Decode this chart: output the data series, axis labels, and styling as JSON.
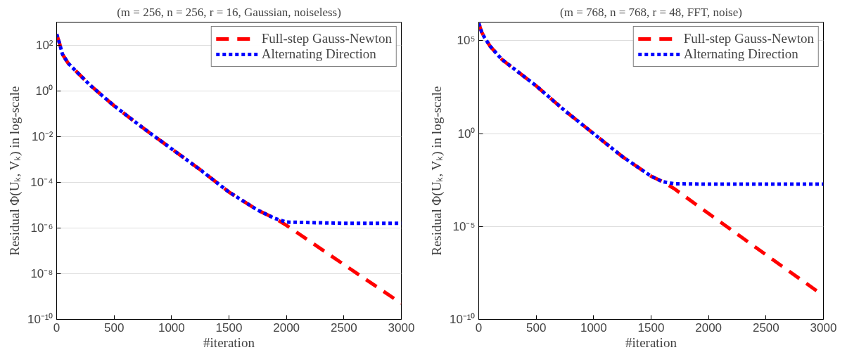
{
  "chart_data": [
    {
      "type": "line",
      "title": "(m = 256, n = 256, r = 16, Gaussian, noiseless)",
      "xlabel": "#iteration",
      "ylabel": "Residual Φ(Uₖ, Vₖ) in log-scale",
      "log": "y",
      "grid": "y",
      "legend": "top right",
      "x": [
        0,
        25,
        50,
        100,
        200,
        300,
        500,
        750,
        1000,
        1250,
        1500,
        1750,
        1900,
        2000,
        2500,
        3000
      ],
      "xlim": [
        0,
        3000
      ],
      "xticks": [
        0,
        500,
        1000,
        1500,
        2000,
        2500,
        3000
      ],
      "ylim": [
        1e-10,
        1000
      ],
      "yticks": [
        {
          "value": 1e-10,
          "label": "10⁻¹⁰"
        },
        {
          "value": 1e-08,
          "label": "10⁻⁸"
        },
        {
          "value": 1e-06,
          "label": "10⁻⁶"
        },
        {
          "value": 0.0001,
          "label": "10⁻⁴"
        },
        {
          "value": 0.01,
          "label": "10⁻²"
        },
        {
          "value": 1,
          "label": "10⁰"
        },
        {
          "value": 100,
          "label": "10²"
        }
      ],
      "series": [
        {
          "name": "Full-step Gauss-Newton",
          "color": "#ff0000",
          "line_style": "dashed",
          "values": [
            300,
            120,
            40,
            16,
            5,
            1.6,
            0.22,
            0.024,
            0.0029,
            0.00035,
            3.7e-05,
            6e-06,
            2.6e-06,
            1.3e-06,
            2.5e-08,
            5e-10
          ]
        },
        {
          "name": "Alternating Direction",
          "color": "#0000ff",
          "line_style": "dotted",
          "values": [
            300,
            120,
            40,
            16,
            5,
            1.6,
            0.22,
            0.024,
            0.0029,
            0.00035,
            3.7e-05,
            6e-06,
            2.6e-06,
            1.8e-06,
            1.6e-06,
            1.6e-06
          ]
        }
      ]
    },
    {
      "type": "line",
      "title": "(m = 768, n = 768, r = 48, FFT, noise)",
      "xlabel": "#iteration",
      "ylabel": "Residual Φ(Uₖ, Vₖ) in log-scale",
      "log": "y",
      "grid": "y",
      "legend": "top right",
      "x": [
        0,
        25,
        50,
        100,
        200,
        500,
        750,
        1000,
        1250,
        1500,
        1600,
        1700,
        2000,
        2500,
        3000
      ],
      "xlim": [
        0,
        3000
      ],
      "xticks": [
        0,
        500,
        1000,
        1500,
        2000,
        2500,
        3000
      ],
      "ylim": [
        1e-10,
        1000000
      ],
      "yticks": [
        {
          "value": 1e-10,
          "label": "10⁻¹⁰"
        },
        {
          "value": 1e-05,
          "label": "10⁻⁵"
        },
        {
          "value": 1,
          "label": "10⁰"
        },
        {
          "value": 100000,
          "label": "10⁵"
        }
      ],
      "series": [
        {
          "name": "Full-step Gauss-Newton",
          "color": "#ff0000",
          "line_style": "dashed",
          "values": [
            870000,
            300000,
            150000,
            50000,
            10000,
            370,
            17,
            1,
            0.058,
            0.0051,
            0.0026,
            0.0011,
            5e-05,
            3e-07,
            1.9e-09
          ]
        },
        {
          "name": "Alternating Direction",
          "color": "#0000ff",
          "line_style": "dotted",
          "values": [
            870000,
            300000,
            150000,
            50000,
            10000,
            370,
            17,
            1,
            0.058,
            0.0051,
            0.0026,
            0.002,
            0.0019,
            0.0019,
            0.0019
          ]
        }
      ]
    }
  ]
}
